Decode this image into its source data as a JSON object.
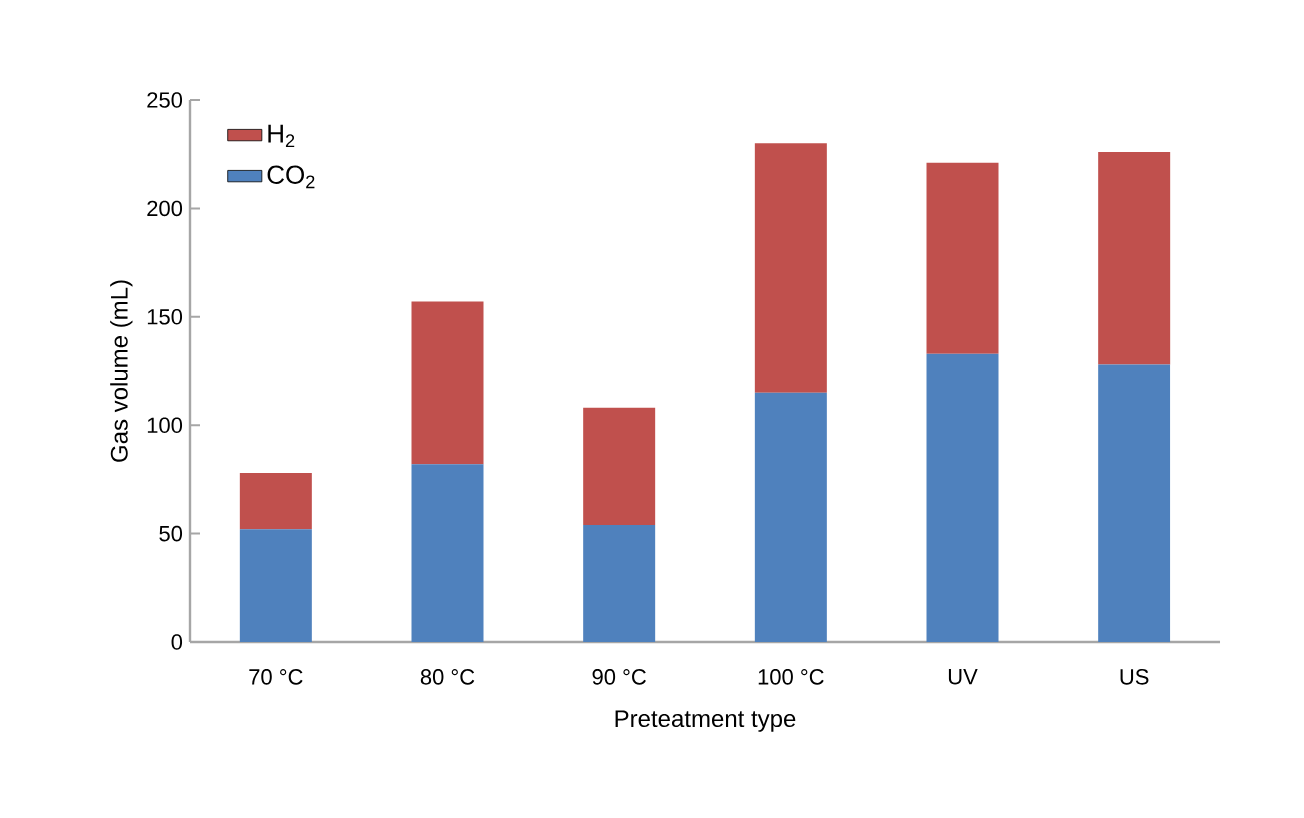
{
  "chart_data": {
    "type": "bar",
    "stacked": true,
    "categories": [
      "70 °C",
      "80 °C",
      "90 °C",
      "100 °C",
      "UV",
      "US"
    ],
    "xlabel": "Preteatment type",
    "ylabel": "Gas volume (mL)",
    "series": [
      {
        "name": "CO$_{2}$",
        "color": "#4f81bd",
        "values": [
          52,
          82,
          54,
          115,
          133,
          128
        ]
      },
      {
        "name": "H$_{2}$",
        "color": "#c0504d",
        "values": [
          26,
          75,
          54,
          115,
          88,
          98
        ]
      }
    ],
    "ylim": [
      0,
      250
    ],
    "yticks": [
      0,
      50,
      100,
      150,
      200,
      250
    ],
    "legend": "top left"
  }
}
